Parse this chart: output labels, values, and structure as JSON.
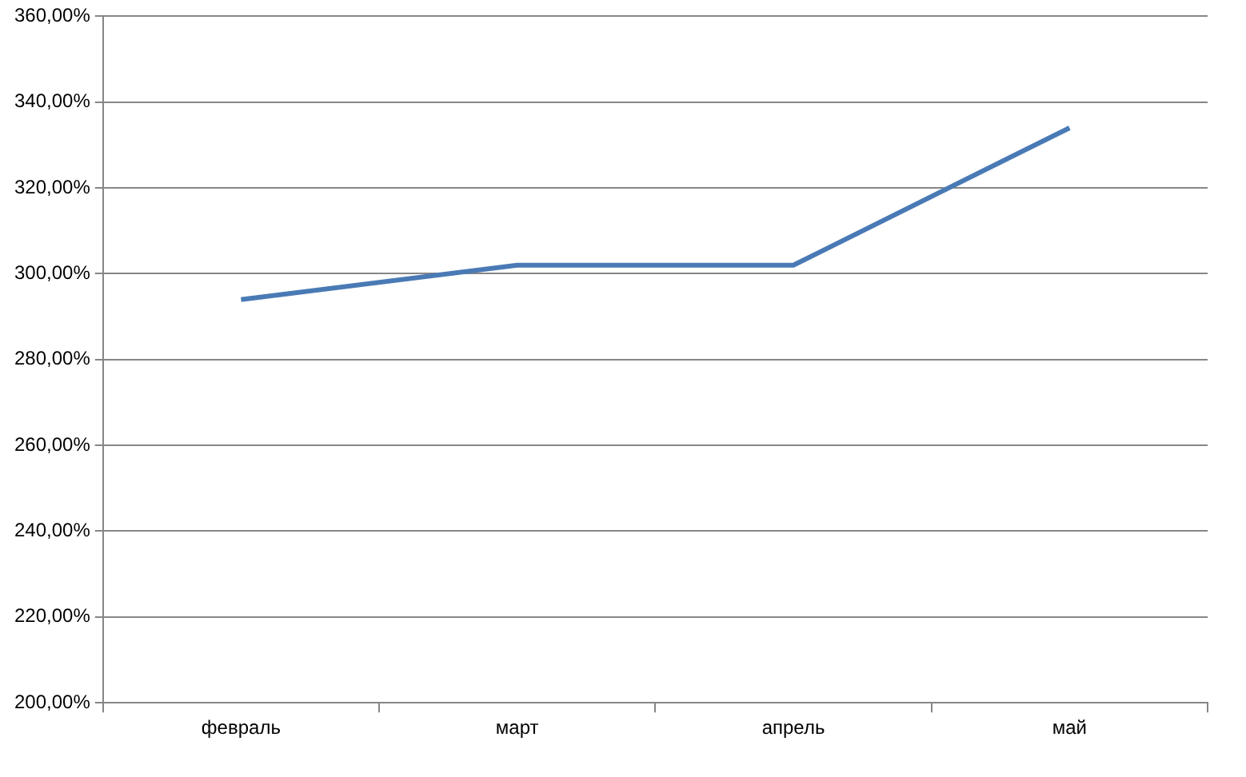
{
  "chart_data": {
    "type": "line",
    "categories": [
      "февраль",
      "март",
      "апрель",
      "май"
    ],
    "series": [
      {
        "color": "#4a7ab5",
        "values": [
          294,
          302,
          302,
          334
        ]
      }
    ],
    "ylim": [
      200,
      360
    ],
    "yticks": [
      {
        "value": 200,
        "label": "200,00%"
      },
      {
        "value": 220,
        "label": "220,00%"
      },
      {
        "value": 240,
        "label": "240,00%"
      },
      {
        "value": 260,
        "label": "260,00%"
      },
      {
        "value": 280,
        "label": "280,00%"
      },
      {
        "value": 300,
        "label": "300,00%"
      },
      {
        "value": 320,
        "label": "320,00%"
      },
      {
        "value": 340,
        "label": "340,00%"
      },
      {
        "value": 360,
        "label": "360,00%"
      }
    ],
    "grid": "y",
    "legend": false,
    "marker": "none",
    "line_style": "solid"
  }
}
